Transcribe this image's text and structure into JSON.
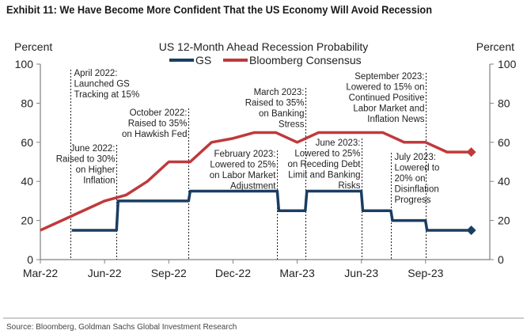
{
  "exhibit_title": "Exhibit 11: We Have Become More Confident That the US Economy Will Avoid Recession",
  "source": "Source: Bloomberg, Goldman Sachs Global Investment Research",
  "colors": {
    "gs": "#1b3d63",
    "bloomberg": "#c0393b",
    "axis": "#808080"
  },
  "chart_data": {
    "type": "line",
    "title": "US 12-Month Ahead Recession Probability",
    "ylabel_left": "Percent",
    "ylabel_right": "Percent",
    "ylim": [
      0,
      100
    ],
    "yticks": [
      "0",
      "20",
      "40",
      "60",
      "80",
      "100"
    ],
    "xlim": [
      "2022-03",
      "2023-12"
    ],
    "xticks": [
      "Mar-22",
      "Jun-22",
      "Sep-22",
      "Dec-22",
      "Mar-23",
      "Jun-23",
      "Sep-23"
    ],
    "legend": "top-center",
    "grid": false,
    "series": [
      {
        "name": "GS",
        "step": true,
        "points": [
          [
            "2022-04-15",
            15
          ],
          [
            "2022-06-20",
            30
          ],
          [
            "2022-10-01",
            35
          ],
          [
            "2023-02-05",
            25
          ],
          [
            "2023-03-15",
            35
          ],
          [
            "2023-06-03",
            25
          ],
          [
            "2023-07-15",
            20
          ],
          [
            "2023-09-03",
            15
          ],
          [
            "2023-11-05",
            15
          ]
        ]
      },
      {
        "name": "Bloomberg Consensus",
        "step": false,
        "points": [
          [
            "2022-03-01",
            15
          ],
          [
            "2022-04-01",
            20
          ],
          [
            "2022-05-01",
            25
          ],
          [
            "2022-06-01",
            30
          ],
          [
            "2022-07-01",
            33
          ],
          [
            "2022-08-01",
            40
          ],
          [
            "2022-09-01",
            50
          ],
          [
            "2022-10-01",
            50
          ],
          [
            "2022-11-01",
            60
          ],
          [
            "2022-12-01",
            62
          ],
          [
            "2023-01-01",
            65
          ],
          [
            "2023-02-01",
            65
          ],
          [
            "2023-03-01",
            60
          ],
          [
            "2023-04-01",
            65
          ],
          [
            "2023-05-01",
            65
          ],
          [
            "2023-06-01",
            65
          ],
          [
            "2023-07-01",
            65
          ],
          [
            "2023-08-01",
            60
          ],
          [
            "2023-09-01",
            60
          ],
          [
            "2023-10-01",
            55
          ],
          [
            "2023-11-05",
            55
          ]
        ]
      }
    ],
    "annotations": [
      {
        "date": "2022-04-15",
        "lines": [
          "April 2022:",
          "Launched GS",
          "Tracking at 15%"
        ]
      },
      {
        "date": "2022-06-20",
        "lines": [
          "June 2022:",
          "Raised to 30%",
          "on Higher",
          "Inflation"
        ]
      },
      {
        "date": "2022-10-01",
        "lines": [
          "October 2022:",
          "Raised to 35%",
          "on Hawkish Fed"
        ]
      },
      {
        "date": "2023-02-05",
        "lines": [
          "February 2023:",
          "Lowered to 25%",
          "on Labor Market",
          "Adjustment"
        ]
      },
      {
        "date": "2023-03-15",
        "lines": [
          "March 2023:",
          "Raised to 35%",
          "on Banking",
          "Stress"
        ]
      },
      {
        "date": "2023-06-03",
        "lines": [
          "June 2023:",
          "Lowered to 25%",
          "on Receding Debt",
          "Limit and Banking",
          "Risks"
        ]
      },
      {
        "date": "2023-07-15",
        "lines": [
          "July 2023:",
          "Lowered to",
          "20% on",
          "Disinflation",
          "Progress"
        ]
      },
      {
        "date": "2023-09-03",
        "lines": [
          "September 2023:",
          "Lowered to 15% on",
          "Continued Positive",
          "Labor Market and",
          "Inflation News"
        ]
      }
    ]
  }
}
